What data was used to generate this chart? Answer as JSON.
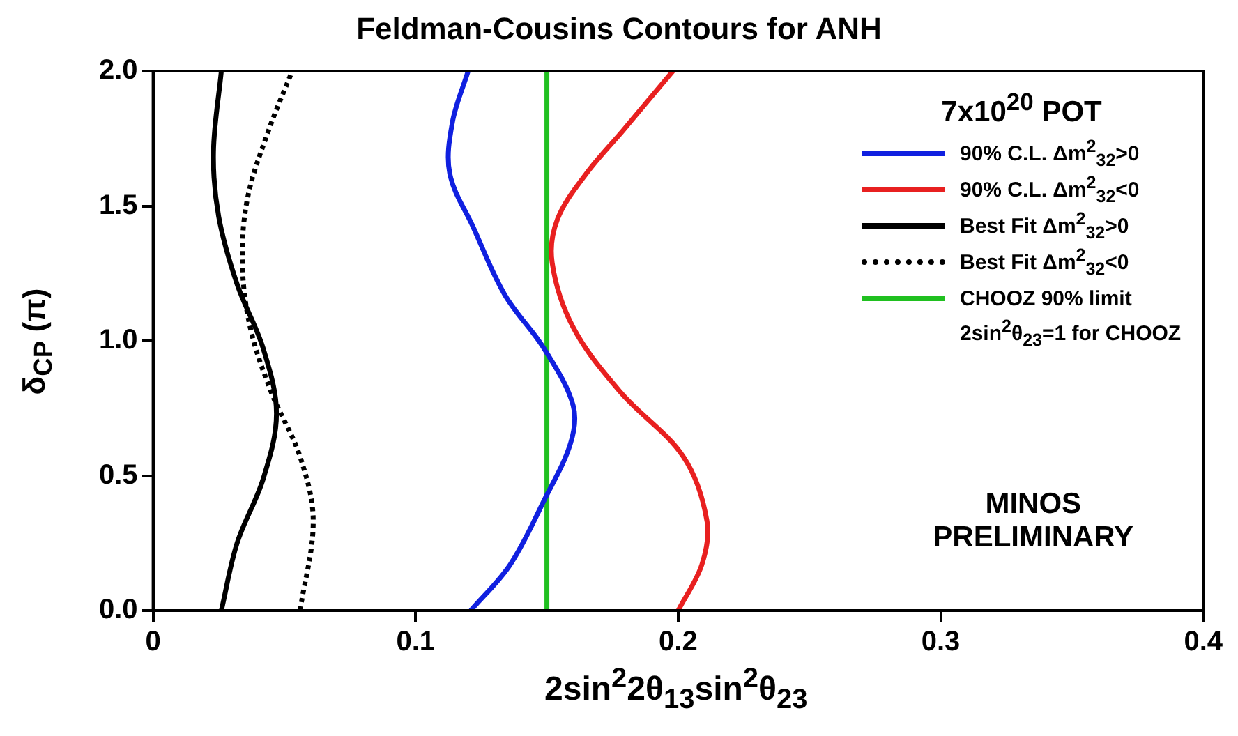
{
  "chart_data": {
    "type": "line",
    "title": "Feldman-Cousins Contours for ANH",
    "xlabel": "2sin$^{2}$2θ$_{13}$sin$^{2}$θ$_{23}$",
    "ylabel": "δ$_{CP}$ (π)",
    "legend_title": "7x10$^{20}$ POT",
    "legend": "top right",
    "grid": false,
    "marker": "none",
    "xlim": [
      0,
      0.4
    ],
    "xticks": [
      {
        "value": 0,
        "label": "0"
      },
      0.1,
      0.2,
      0.3,
      0.4
    ],
    "ylim": [
      0,
      2
    ],
    "yticks": [
      {
        "value": 0,
        "label": "0.0"
      },
      0.5,
      {
        "value": 1,
        "label": "1.0"
      },
      1.5,
      {
        "value": 2,
        "label": "2.0"
      }
    ],
    "series": [
      {
        "name": "90% C.L. Δm$^{2}$$_{32}$>0",
        "color": "#1020e0",
        "line_style": "solid",
        "x": [
          0.121,
          0.136,
          0.149,
          0.159,
          0.16,
          0.149,
          0.134,
          0.122,
          0.113,
          0.114,
          0.12
        ],
        "values": [
          0,
          0.17,
          0.41,
          0.62,
          0.76,
          0.97,
          1.17,
          1.42,
          1.62,
          1.81,
          2
        ]
      },
      {
        "name": "90% C.L. Δm$^{2}$$_{32}$<0",
        "color": "#e82020",
        "line_style": "solid",
        "x": [
          0.2,
          0.209,
          0.211,
          0.202,
          0.178,
          0.16,
          0.152,
          0.154,
          0.165,
          0.179,
          0.198
        ],
        "values": [
          0,
          0.17,
          0.33,
          0.57,
          0.81,
          1.05,
          1.29,
          1.45,
          1.62,
          1.78,
          2
        ]
      },
      {
        "name": "Best Fit Δm$^{2}$$_{32}$>0",
        "color": "#000000",
        "line_style": "solid",
        "x": [
          0.026,
          0.032,
          0.042,
          0.047,
          0.042,
          0.032,
          0.025,
          0.023,
          0.026
        ],
        "values": [
          0,
          0.25,
          0.49,
          0.73,
          0.97,
          1.21,
          1.46,
          1.7,
          2
        ]
      },
      {
        "name": "Best Fit Δm$^{2}$$_{32}$<0",
        "color": "#000000",
        "line_style": "dotted",
        "x": [
          0.056,
          0.061,
          0.056,
          0.045,
          0.037,
          0.034,
          0.036,
          0.044,
          0.053
        ],
        "values": [
          0,
          0.33,
          0.57,
          0.81,
          1.05,
          1.29,
          1.53,
          1.78,
          2
        ]
      },
      {
        "name": "CHOOZ 90% limit",
        "color": "#20c020",
        "line_style": "solid",
        "x": [
          0.15,
          0.15
        ],
        "values": [
          0,
          2
        ]
      }
    ],
    "annotations": [
      "2sin$^{2}$θ$_{23}$=1 for CHOOZ",
      "MINOS\nPRELIMINARY"
    ]
  }
}
